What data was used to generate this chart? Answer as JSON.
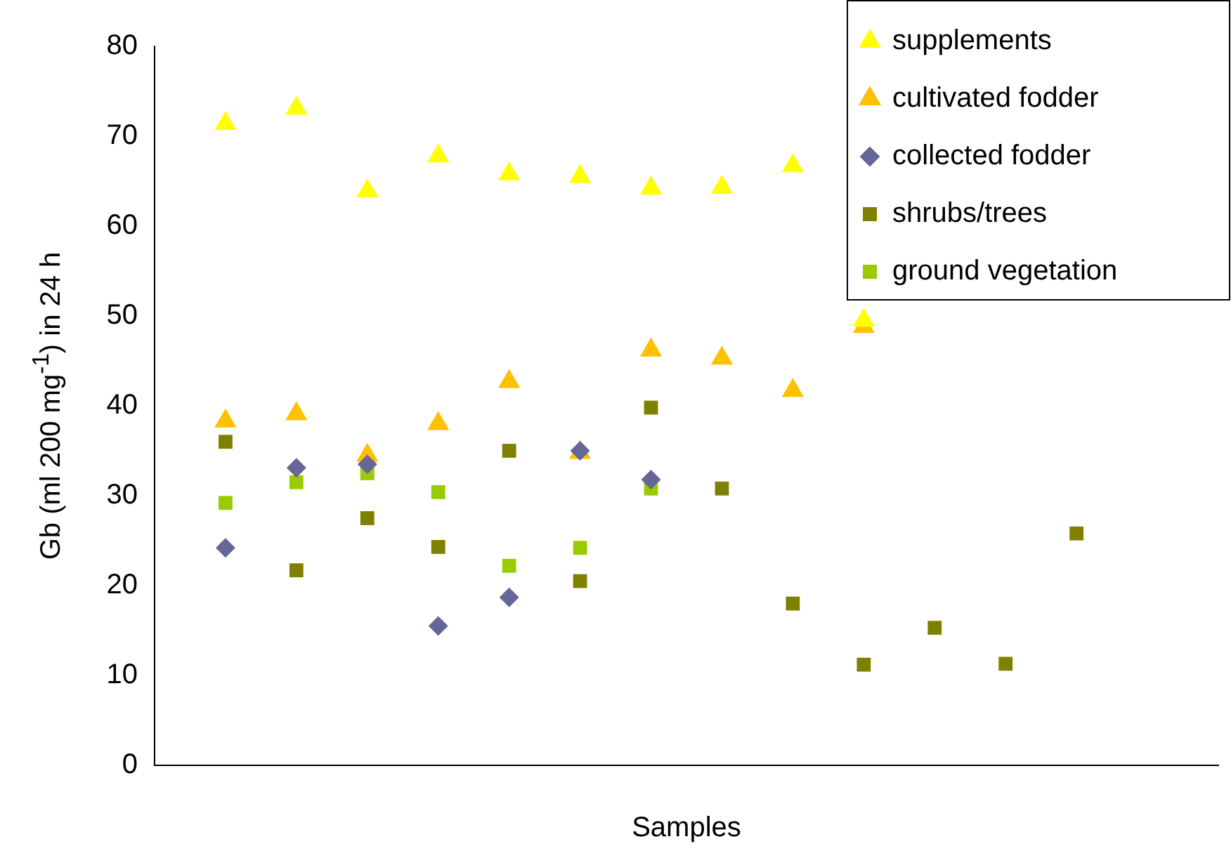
{
  "chart_data": {
    "type": "scatter",
    "xlabel": "Samples",
    "ylabel": "Gb (ml 200 mg$^{-1}$) in 24 h",
    "categories": [
      null,
      null,
      null,
      null,
      null,
      null,
      null,
      null,
      null,
      null,
      null,
      null,
      null,
      null
    ],
    "ylim": [
      0,
      80
    ],
    "yticks": [
      0,
      10,
      20,
      30,
      40,
      50,
      60,
      70,
      80
    ],
    "tick_labels": "y",
    "grid": false,
    "legend": "top right",
    "series": [
      {
        "name": "supplements",
        "color": "#ffff00",
        "marker": "triangle",
        "values": [
          71.4,
          73.1,
          63.9,
          67.8,
          65.8,
          65.5,
          64.2,
          64.3,
          66.7,
          49.5,
          null,
          null,
          null,
          null
        ]
      },
      {
        "name": "cultivated fodder",
        "color": "#ffc000",
        "marker": "triangle",
        "values": [
          38.3,
          39.1,
          34.5,
          38,
          42.7,
          34.8,
          46.2,
          45.3,
          41.7,
          48.8,
          null,
          null,
          null,
          null
        ]
      },
      {
        "name": "collected fodder",
        "color": "#666699",
        "marker": "diamond",
        "values": [
          24.2,
          33.1,
          33.5,
          15.5,
          18.7,
          35,
          31.8,
          null,
          null,
          null,
          null,
          null,
          null,
          null
        ]
      },
      {
        "name": "shrubs/trees",
        "color": "#808000",
        "marker": "square",
        "values": [
          36,
          21.7,
          27.5,
          24.3,
          35,
          20.5,
          39.8,
          30.8,
          18,
          11.2,
          15.3,
          11.3,
          25.8,
          null
        ]
      },
      {
        "name": "ground vegetation",
        "color": "#99cc00",
        "marker": "square",
        "values": [
          29.2,
          31.5,
          32.5,
          30.4,
          22.2,
          24.2,
          30.8,
          null,
          null,
          null,
          null,
          null,
          null,
          null
        ]
      }
    ]
  }
}
